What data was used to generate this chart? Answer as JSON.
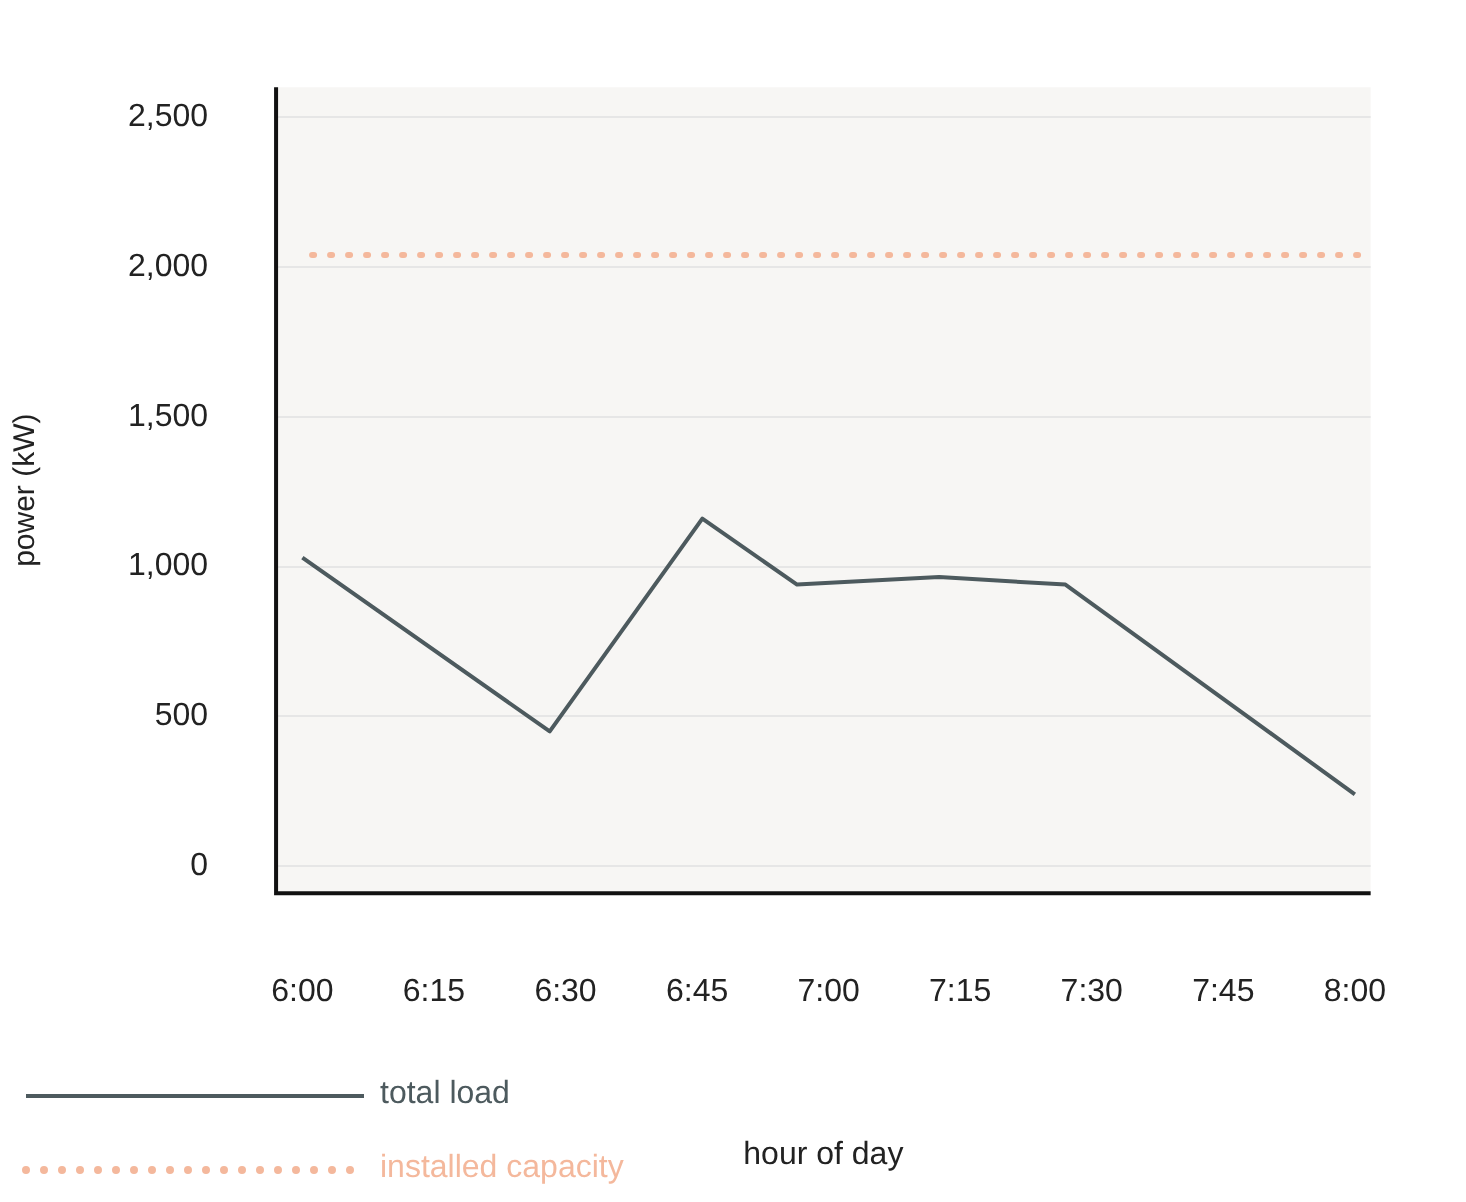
{
  "chart_data": {
    "type": "line",
    "xlabel": "hour of day",
    "ylabel": "power (kW)",
    "x": [
      6.0,
      6.47,
      6.76,
      6.94,
      7.21,
      7.45,
      8.0
    ],
    "series": [
      {
        "name": "total load",
        "color": "#4d5a5e",
        "values": [
          1030,
          450,
          1160,
          940,
          965,
          940,
          240
        ]
      }
    ],
    "ref_lines": [
      {
        "axis": "y",
        "value": 2040,
        "label": "installed capacity",
        "color": "#f4b89c",
        "line_style": "dotted"
      }
    ],
    "xlim": [
      5.95,
      8.03
    ],
    "xticks": [
      {
        "value": 6,
        "label": "6:00"
      },
      {
        "value": 6.25,
        "label": "6:15"
      },
      {
        "value": 6.5,
        "label": "6:30"
      },
      {
        "value": 6.75,
        "label": "6:45"
      },
      {
        "value": 7,
        "label": "7:00"
      },
      {
        "value": 7.25,
        "label": "7:15"
      },
      {
        "value": 7.5,
        "label": "7:30"
      },
      {
        "value": 7.75,
        "label": "7:45"
      },
      {
        "value": 8,
        "label": "8:00"
      }
    ],
    "ylim": [
      -90,
      2600
    ],
    "yticks": [
      {
        "value": 0,
        "label": "0"
      },
      {
        "value": 500,
        "label": "500"
      },
      {
        "value": 1000,
        "label": "1,000"
      },
      {
        "value": 1500,
        "label": "1,500"
      },
      {
        "value": 2000,
        "label": "2,000"
      },
      {
        "value": 2500,
        "label": "2,500"
      }
    ],
    "grid": "y",
    "legend": "bottom left",
    "marker": "none",
    "line_style": "solid"
  }
}
